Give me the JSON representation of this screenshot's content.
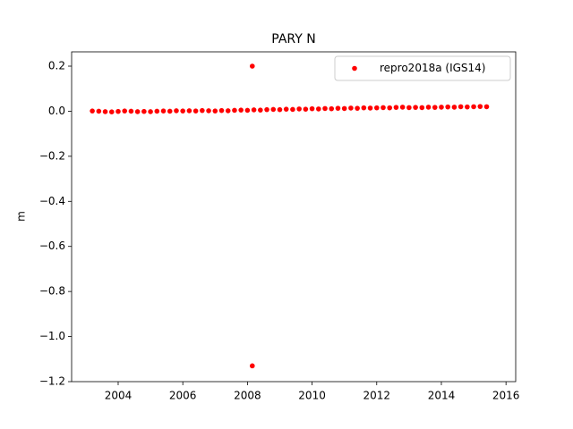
{
  "chart_data": {
    "type": "scatter",
    "title": "PARY N",
    "ylabel": "m",
    "series": [
      {
        "name": "repro2018a (IGS14)",
        "color": "#ff0000",
        "x": [
          2003.2,
          2003.4,
          2003.6,
          2003.8,
          2004.0,
          2004.2,
          2004.4,
          2004.6,
          2004.8,
          2005.0,
          2005.2,
          2005.4,
          2005.6,
          2005.8,
          2006.0,
          2006.2,
          2006.4,
          2006.6,
          2006.8,
          2007.0,
          2007.2,
          2007.4,
          2007.6,
          2007.8,
          2008.0,
          2008.2,
          2008.4,
          2008.6,
          2008.8,
          2009.0,
          2009.2,
          2009.4,
          2009.6,
          2009.8,
          2010.0,
          2010.2,
          2010.4,
          2010.6,
          2010.8,
          2011.0,
          2011.2,
          2011.4,
          2011.6,
          2011.8,
          2012.0,
          2012.2,
          2012.4,
          2012.6,
          2012.8,
          2013.0,
          2013.2,
          2013.4,
          2013.6,
          2013.8,
          2014.0,
          2014.2,
          2014.4,
          2014.6,
          2014.8,
          2015.0,
          2015.2,
          2015.4,
          2008.15,
          2008.15
        ],
        "values": [
          0.001,
          0.0,
          -0.002,
          -0.003,
          -0.001,
          0.001,
          0.0,
          -0.002,
          -0.001,
          -0.002,
          0.0,
          0.001,
          0.0,
          0.002,
          0.001,
          0.002,
          0.001,
          0.003,
          0.002,
          0.001,
          0.003,
          0.002,
          0.004,
          0.005,
          0.004,
          0.006,
          0.005,
          0.007,
          0.008,
          0.007,
          0.009,
          0.008,
          0.01,
          0.009,
          0.011,
          0.01,
          0.012,
          0.011,
          0.013,
          0.012,
          0.014,
          0.013,
          0.015,
          0.014,
          0.015,
          0.016,
          0.015,
          0.017,
          0.018,
          0.016,
          0.017,
          0.016,
          0.018,
          0.017,
          0.018,
          0.019,
          0.018,
          0.02,
          0.019,
          0.02,
          0.021,
          0.02,
          0.2,
          -1.13
        ]
      }
    ],
    "xlim": [
      2002.56,
      2016.3
    ],
    "xticks": [
      2004,
      2006,
      2008,
      2010,
      2012,
      2014,
      2016
    ],
    "ylim": [
      -1.2,
      0.2635
    ],
    "yticks": [
      0.2,
      {
        "value": 0.0,
        "label": "0.0"
      },
      {
        "value": -0.2,
        "label": "−0.2"
      },
      {
        "value": -0.4,
        "label": "−0.4"
      },
      {
        "value": -0.6,
        "label": "−0.6"
      },
      {
        "value": -0.8,
        "label": "−0.8"
      },
      {
        "value": -1.0,
        "label": "−1.0"
      },
      {
        "value": -1.2,
        "label": "−1.2"
      }
    ],
    "legend": "upper right",
    "grid": false
  }
}
